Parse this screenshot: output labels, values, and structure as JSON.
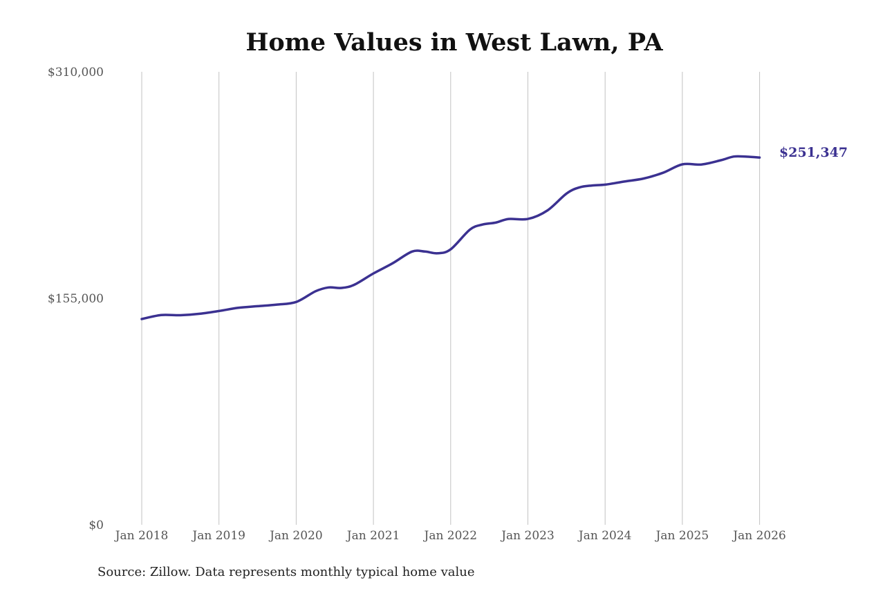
{
  "colors": {
    "series": "#3b3191",
    "grid": "#c2c2c2",
    "title": "#111111",
    "tick": "#555555"
  },
  "chart_data": {
    "type": "line",
    "title": "Home Values in West Lawn, PA",
    "xlabel": "",
    "ylabel": "",
    "ylim": [
      0,
      310000
    ],
    "y_ticks": [
      0,
      155000,
      310000
    ],
    "y_tick_labels": [
      "$0",
      "$155,000",
      "$310,000"
    ],
    "x_ticks": [
      "2018-01",
      "2019-01",
      "2020-01",
      "2021-01",
      "2022-01",
      "2023-01",
      "2024-01",
      "2025-01",
      "2026-01"
    ],
    "x_tick_labels": [
      "Jan 2018",
      "Jan 2019",
      "Jan 2020",
      "Jan 2021",
      "Jan 2022",
      "Jan 2023",
      "Jan 2024",
      "Jan 2025",
      "Jan 2026"
    ],
    "grid": "vertical",
    "series": [
      {
        "x": [
          "2018-01",
          "2018-04",
          "2018-07",
          "2018-10",
          "2019-01",
          "2019-04",
          "2019-07",
          "2019-10",
          "2020-01",
          "2020-04",
          "2020-06",
          "2020-08",
          "2020-10",
          "2021-01",
          "2021-04",
          "2021-07",
          "2021-09",
          "2021-11",
          "2022-01",
          "2022-04",
          "2022-06",
          "2022-08",
          "2022-10",
          "2023-01",
          "2023-04",
          "2023-07",
          "2023-09",
          "2023-11",
          "2024-01",
          "2024-04",
          "2024-07",
          "2024-10",
          "2025-01",
          "2025-04",
          "2025-07",
          "2025-09",
          "2025-11",
          "2026-01"
        ],
        "y": [
          140800,
          143500,
          143400,
          144400,
          146300,
          148500,
          149600,
          150700,
          152500,
          159800,
          162400,
          162100,
          164200,
          172000,
          179000,
          187000,
          187000,
          185800,
          188500,
          202000,
          205500,
          206800,
          209300,
          209300,
          215000,
          226700,
          230900,
          232200,
          232800,
          234900,
          237000,
          240900,
          246700,
          246600,
          249500,
          252000,
          251900,
          251347
        ]
      }
    ],
    "end_label": "$251,347",
    "source": "Source: Zillow. Data represents monthly typical home value"
  }
}
